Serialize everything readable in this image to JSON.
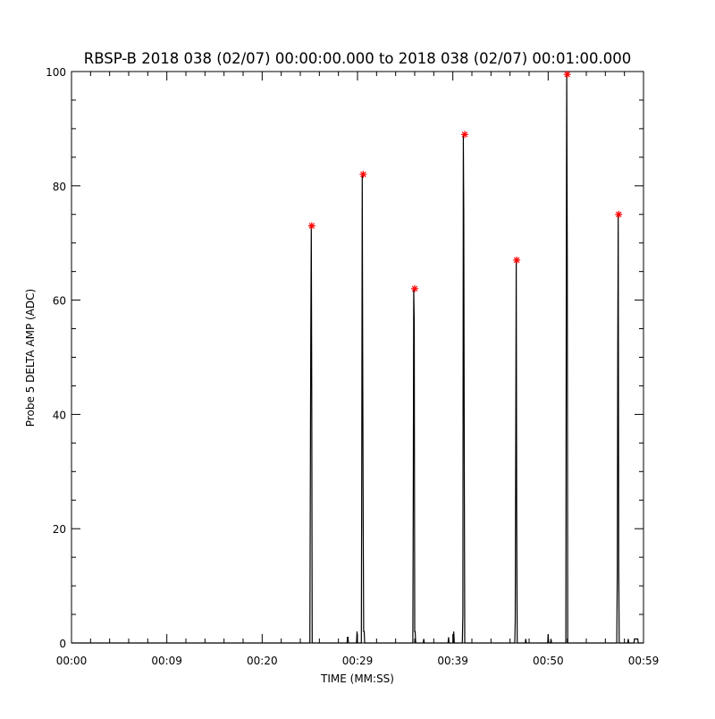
{
  "chart_data": {
    "type": "line",
    "title": "RBSP-B 2018 038 (02/07) 00:00:00.000 to 2018 038 (02/07) 00:01:00.000",
    "xlabel": "TIME (MM:SS)",
    "ylabel": "Probe 5 DELTA AMP (ADC)",
    "xlim": [
      0,
      60
    ],
    "ylim": [
      0,
      100
    ],
    "x_unit": "seconds",
    "x_ticks": [
      {
        "value": 0,
        "label": "00:00"
      },
      {
        "value": 10,
        "label": "00:09"
      },
      {
        "value": 20,
        "label": "00:20"
      },
      {
        "value": 30,
        "label": "00:29"
      },
      {
        "value": 40,
        "label": "00:39"
      },
      {
        "value": 50,
        "label": "00:50"
      },
      {
        "value": 60,
        "label": "00:59"
      }
    ],
    "y_ticks": [
      0,
      20,
      40,
      60,
      80,
      100
    ],
    "grid": false,
    "line_color": "#000000",
    "marker_color": "#ff0000",
    "series": [
      {
        "x": [
          0,
          25.0,
          25.1,
          25.15,
          25.2,
          25.25,
          25.3,
          25.4,
          28.9,
          28.95,
          29.0,
          29.05,
          29.9,
          29.95,
          30.0,
          30.4,
          30.45,
          30.5,
          30.55,
          30.6,
          30.65,
          30.7,
          30.75,
          30.8,
          35.8,
          35.85,
          35.9,
          35.95,
          36.0,
          36.05,
          36.1,
          36.15,
          36.9,
          36.95,
          37.0,
          39.5,
          39.55,
          39.6,
          40.05,
          40.1,
          40.15,
          41.0,
          41.05,
          41.1,
          41.15,
          41.2,
          41.25,
          41.3,
          41.35,
          46.5,
          46.55,
          46.6,
          46.65,
          46.7,
          46.75,
          46.8,
          47.6,
          47.65,
          47.7,
          49.95,
          50.0,
          50.05,
          50.25,
          50.3,
          50.35,
          51.8,
          51.85,
          51.9,
          51.95,
          52.0,
          52.05,
          52.1,
          57.2,
          57.25,
          57.3,
          57.35,
          57.4,
          57.45,
          57.5,
          58.35,
          58.4,
          58.45,
          59.0,
          59.05,
          59.4,
          59.45,
          60
        ],
        "y": [
          0,
          0,
          52,
          73,
          44,
          0,
          0,
          0,
          0,
          1,
          1,
          0,
          0,
          2,
          0,
          0,
          34,
          82,
          45,
          20,
          2,
          2,
          0,
          0,
          0,
          26,
          62,
          56,
          2,
          2,
          0,
          0,
          0,
          0.7,
          0,
          0,
          1,
          0,
          0,
          2,
          0,
          0,
          5,
          89,
          75,
          30,
          0,
          0,
          0,
          0,
          4,
          37,
          67,
          23,
          0,
          0,
          0,
          0.7,
          0,
          0,
          1.5,
          0,
          0,
          0.7,
          0,
          0,
          0,
          63,
          99.5,
          68,
          0,
          0,
          0,
          13,
          51,
          75,
          13,
          0,
          0,
          0,
          0.7,
          0,
          0,
          0.7,
          0.7,
          0,
          0
        ]
      }
    ],
    "peak_markers": {
      "x": [
        25.2,
        30.6,
        36.0,
        41.25,
        46.7,
        52.0,
        57.4
      ],
      "y": [
        73,
        82,
        62,
        89,
        67,
        99.5,
        75
      ]
    }
  }
}
